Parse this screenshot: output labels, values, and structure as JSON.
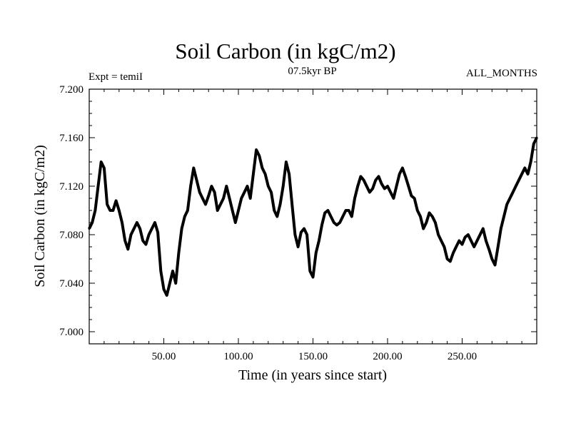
{
  "chart_data": {
    "type": "line",
    "title": "Soil Carbon (in kgC/m2)",
    "subtitle": "07.5kyr BP",
    "left_annotation": "Expt = temiI",
    "right_annotation": "ALL_MONTHS",
    "xlabel": "Time (in years since start)",
    "ylabel": "Soil Carbon (in kgC/m2)",
    "xlim": [
      0,
      300
    ],
    "ylim": [
      6.99,
      7.2
    ],
    "x_ticks": [
      50,
      100,
      150,
      200,
      250
    ],
    "x_tick_labels": [
      "50.00",
      "100.00",
      "150.00",
      "200.00",
      "250.00"
    ],
    "y_ticks": [
      7.0,
      7.04,
      7.08,
      7.12,
      7.16,
      7.2
    ],
    "y_tick_labels": [
      "7.000",
      "7.040",
      "7.080",
      "7.120",
      "7.160",
      "7.200"
    ],
    "series": [
      {
        "name": "Soil Carbon",
        "x": [
          0,
          2,
          4,
          6,
          8,
          10,
          12,
          14,
          16,
          18,
          20,
          22,
          24,
          26,
          28,
          30,
          32,
          34,
          36,
          38,
          40,
          42,
          44,
          46,
          48,
          50,
          52,
          54,
          56,
          58,
          60,
          62,
          64,
          66,
          68,
          70,
          72,
          74,
          76,
          78,
          80,
          82,
          84,
          86,
          88,
          90,
          92,
          94,
          96,
          98,
          100,
          102,
          104,
          106,
          108,
          110,
          112,
          114,
          116,
          118,
          120,
          122,
          124,
          126,
          128,
          130,
          132,
          134,
          136,
          138,
          140,
          142,
          144,
          146,
          148,
          150,
          152,
          154,
          156,
          158,
          160,
          162,
          164,
          166,
          168,
          170,
          172,
          174,
          176,
          178,
          180,
          182,
          184,
          186,
          188,
          190,
          192,
          194,
          196,
          198,
          200,
          202,
          204,
          206,
          208,
          210,
          212,
          214,
          216,
          218,
          220,
          222,
          224,
          226,
          228,
          230,
          232,
          234,
          236,
          238,
          240,
          242,
          244,
          246,
          248,
          250,
          252,
          254,
          256,
          258,
          260,
          262,
          264,
          266,
          268,
          270,
          272,
          274,
          276,
          278,
          280,
          282,
          284,
          286,
          288,
          290,
          292,
          294,
          296,
          298,
          300
        ],
        "y": [
          7.085,
          7.09,
          7.1,
          7.12,
          7.14,
          7.135,
          7.105,
          7.1,
          7.1,
          7.108,
          7.1,
          7.09,
          7.075,
          7.068,
          7.08,
          7.085,
          7.09,
          7.085,
          7.075,
          7.072,
          7.08,
          7.085,
          7.09,
          7.082,
          7.05,
          7.035,
          7.03,
          7.04,
          7.05,
          7.04,
          7.065,
          7.085,
          7.095,
          7.1,
          7.12,
          7.135,
          7.125,
          7.115,
          7.11,
          7.105,
          7.112,
          7.12,
          7.115,
          7.1,
          7.105,
          7.11,
          7.12,
          7.11,
          7.1,
          7.09,
          7.1,
          7.11,
          7.115,
          7.12,
          7.11,
          7.13,
          7.15,
          7.145,
          7.135,
          7.13,
          7.12,
          7.115,
          7.1,
          7.095,
          7.105,
          7.12,
          7.14,
          7.13,
          7.105,
          7.08,
          7.07,
          7.082,
          7.085,
          7.08,
          7.05,
          7.045,
          7.065,
          7.075,
          7.088,
          7.098,
          7.1,
          7.095,
          7.09,
          7.088,
          7.09,
          7.095,
          7.1,
          7.1,
          7.095,
          7.11,
          7.12,
          7.128,
          7.125,
          7.12,
          7.115,
          7.118,
          7.125,
          7.128,
          7.122,
          7.118,
          7.12,
          7.115,
          7.11,
          7.12,
          7.13,
          7.135,
          7.128,
          7.12,
          7.112,
          7.11,
          7.1,
          7.095,
          7.085,
          7.09,
          7.098,
          7.095,
          7.09,
          7.08,
          7.075,
          7.07,
          7.06,
          7.058,
          7.065,
          7.07,
          7.075,
          7.072,
          7.078,
          7.08,
          7.075,
          7.07,
          7.075,
          7.08,
          7.085,
          7.075,
          7.068,
          7.06,
          7.055,
          7.07,
          7.085,
          7.095,
          7.105,
          7.11,
          7.115,
          7.12,
          7.125,
          7.13,
          7.135,
          7.13,
          7.14,
          7.155,
          7.16
        ]
      }
    ]
  }
}
